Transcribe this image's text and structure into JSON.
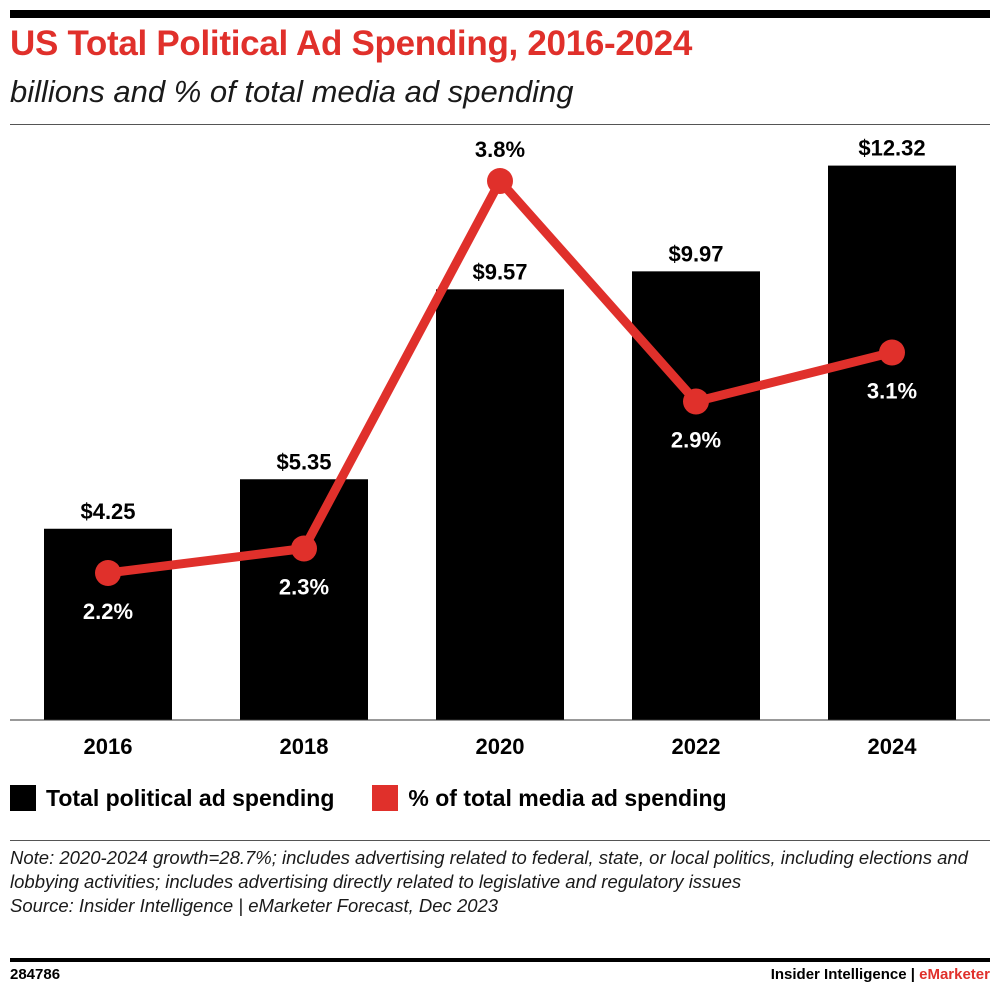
{
  "header": {
    "title": "US Total Political Ad Spending, 2016-2024",
    "subtitle": "billions and % of total media ad spending"
  },
  "chart_data": {
    "type": "bar",
    "categories": [
      "2016",
      "2018",
      "2020",
      "2022",
      "2024"
    ],
    "series": [
      {
        "name": "Total political ad spending",
        "kind": "bar",
        "values": [
          4.25,
          5.35,
          9.57,
          9.97,
          12.32
        ],
        "labels": [
          "$4.25",
          "$5.35",
          "$9.57",
          "$9.97",
          "$12.32"
        ],
        "color": "#000000"
      },
      {
        "name": "% of total media ad spending",
        "kind": "line",
        "values": [
          2.2,
          2.3,
          3.8,
          2.9,
          3.1
        ],
        "labels": [
          "2.2%",
          "2.3%",
          "3.8%",
          "2.9%",
          "3.1%"
        ],
        "color": "#e0302b"
      }
    ],
    "ylim_bars": [
      0,
      14
    ],
    "ylim_line": [
      1.6,
      4.0
    ],
    "grid": false,
    "legend_position": "bottom-left"
  },
  "legend": {
    "items": [
      {
        "label": "Total political ad spending",
        "color": "#000000"
      },
      {
        "label": "% of total media ad spending",
        "color": "#e0302b"
      }
    ]
  },
  "note": {
    "text": "Note: 2020-2024 growth=28.7%; includes advertising related to federal, state, or local politics, including elections and lobbying activities; includes advertising directly related to legislative and regulatory issues",
    "source": "Source: Insider Intelligence | eMarketer Forecast, Dec 2023"
  },
  "footer": {
    "id": "284786",
    "brand_main": "Insider Intelligence | ",
    "brand_accent": "eMarketer"
  },
  "colors": {
    "accent": "#e0302b",
    "bar": "#000000"
  }
}
